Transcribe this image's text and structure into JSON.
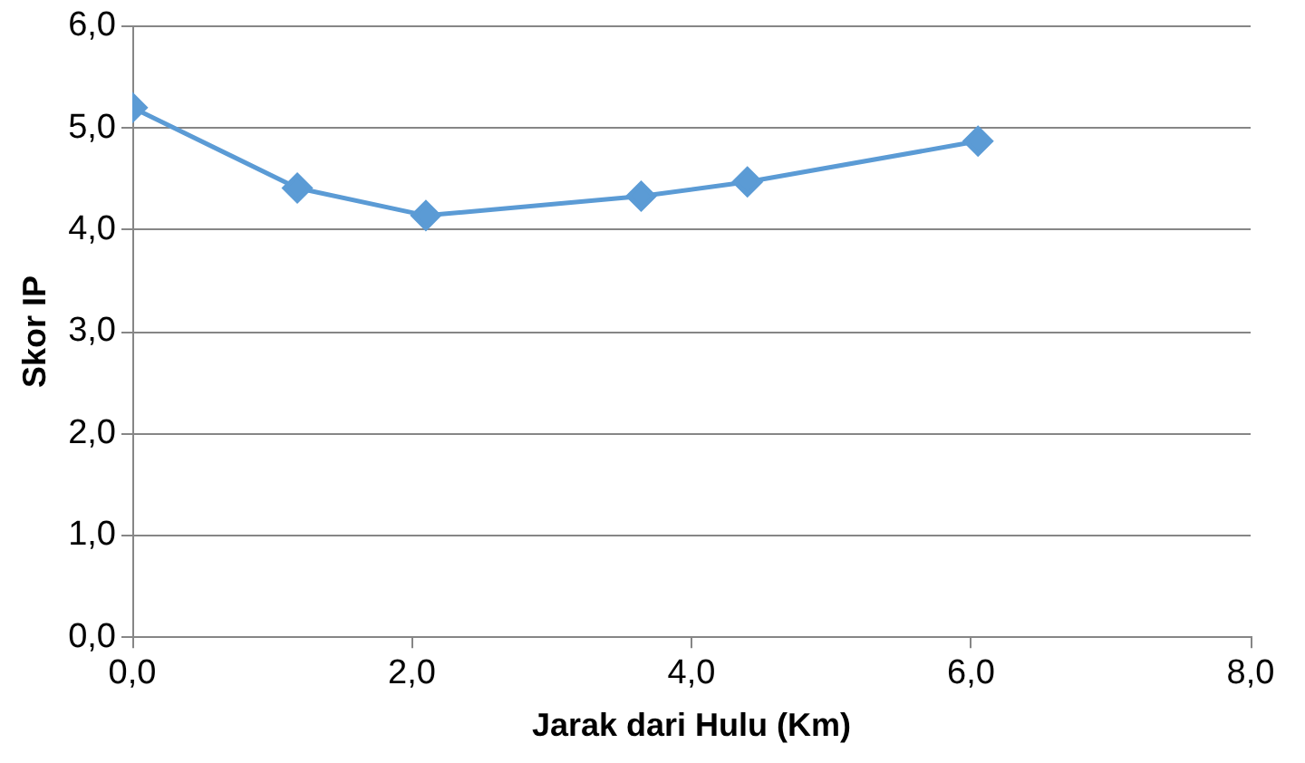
{
  "chart_data": {
    "type": "line",
    "xlabel": "Jarak dari Hulu (Km)",
    "ylabel": "Skor IP",
    "x": [
      0,
      1.18,
      2.1,
      3.64,
      4.4,
      6.05
    ],
    "series": [
      {
        "color": "#5b9bd5",
        "values": [
          5.2,
          4.41,
          4.14,
          4.33,
          4.47,
          4.87
        ]
      }
    ],
    "xlim": [
      0,
      8
    ],
    "ylim": [
      0,
      6
    ],
    "xticks": [
      {
        "value": 0,
        "label": "0,0"
      },
      {
        "value": 2,
        "label": "2,0"
      },
      {
        "value": 4,
        "label": "4,0"
      },
      {
        "value": 6,
        "label": "6,0"
      },
      {
        "value": 8,
        "label": "8,0"
      }
    ],
    "yticks": [
      {
        "value": 0,
        "label": "0,0"
      },
      {
        "value": 1,
        "label": "1,0"
      },
      {
        "value": 2,
        "label": "2,0"
      },
      {
        "value": 3,
        "label": "3,0"
      },
      {
        "value": 4,
        "label": "4,0"
      },
      {
        "value": 5,
        "label": "5,0"
      },
      {
        "value": 6,
        "label": "6,0"
      }
    ],
    "grid": "y",
    "marker": "diamond",
    "line_style": "solid",
    "legend": false
  }
}
